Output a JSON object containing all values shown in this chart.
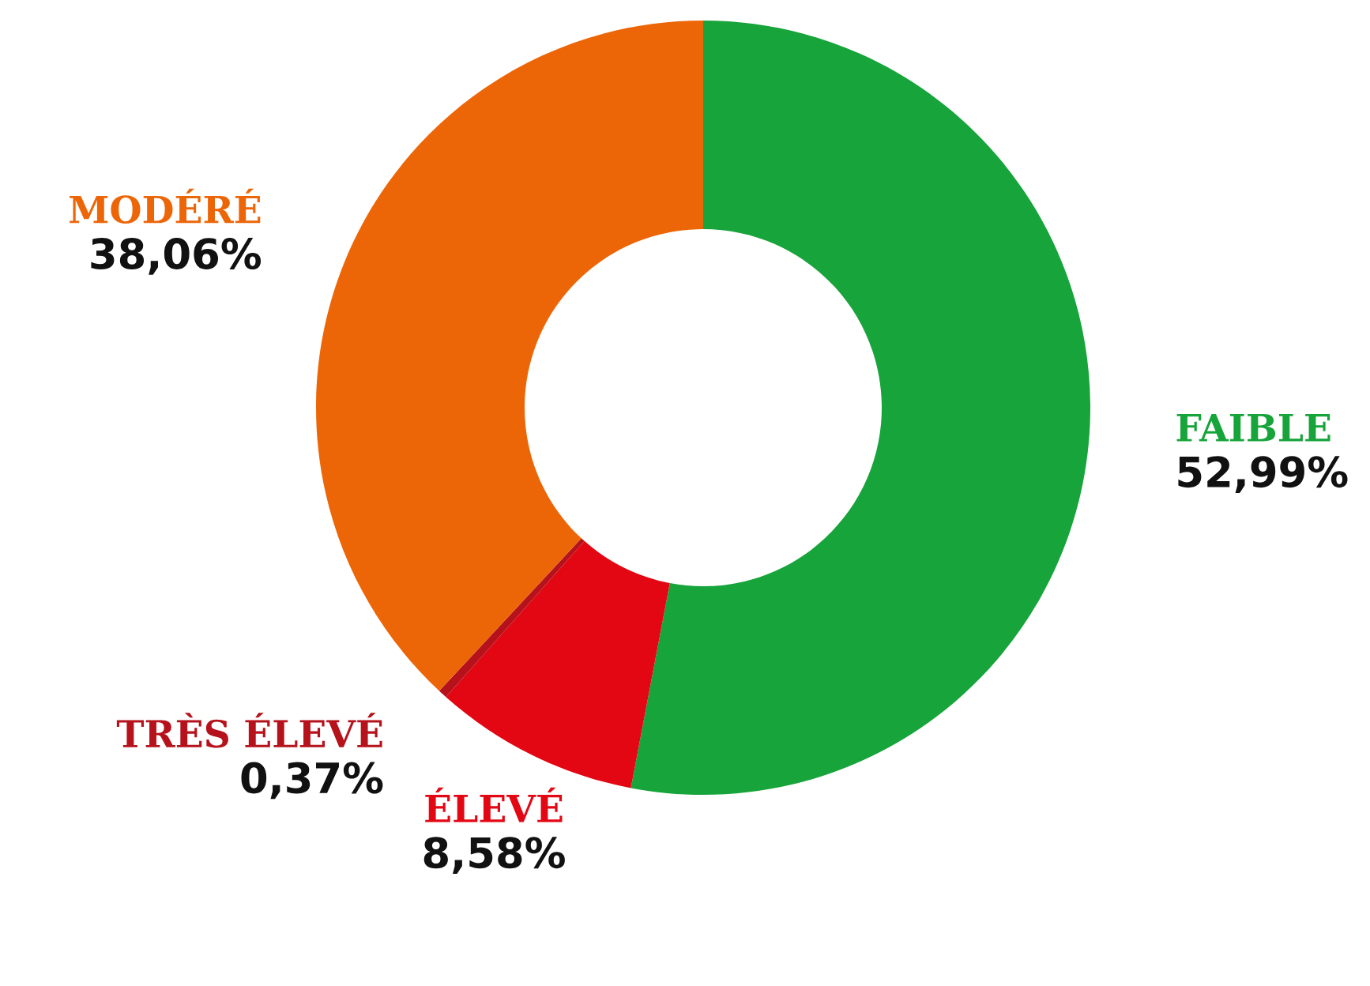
{
  "chart_data": {
    "type": "donut",
    "categories": [
      "FAIBLE",
      "ÉLEVÉ",
      "TRÈS ÉLEVÉ",
      "MODÉRÉ"
    ],
    "values": [
      52.99,
      8.58,
      0.37,
      38.06
    ],
    "value_labels": [
      "52,99%",
      "8,58%",
      "0,37%",
      "38,06%"
    ],
    "colors": [
      "#17a43a",
      "#e30613",
      "#b5121b",
      "#ec6608"
    ],
    "legend": false
  }
}
